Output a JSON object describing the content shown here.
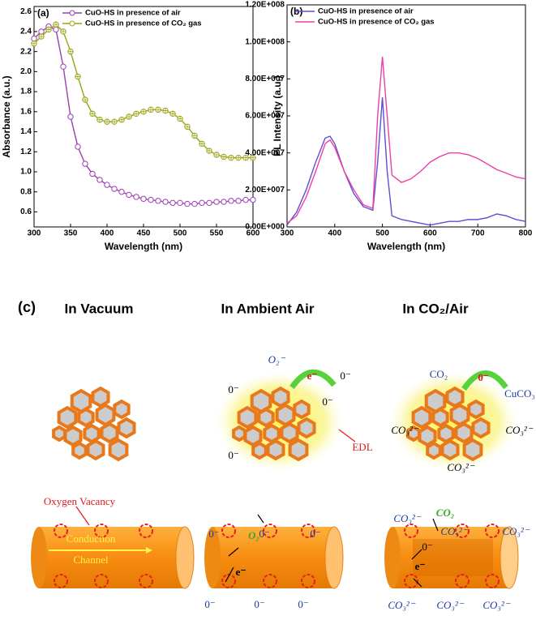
{
  "chart_data": [
    {
      "type": "line",
      "label": "(a)",
      "xlabel": "Wavelength (nm)",
      "ylabel": "Absorbance (a.u.)",
      "x": [
        300,
        310,
        320,
        330,
        340,
        350,
        360,
        370,
        380,
        390,
        400,
        410,
        420,
        430,
        440,
        450,
        460,
        470,
        480,
        490,
        500,
        510,
        520,
        530,
        540,
        550,
        560,
        570,
        580,
        590,
        600
      ],
      "series": [
        {
          "name": "CuO-HS in presence of air",
          "color": "#9b3fb5",
          "marker": "circle",
          "values": [
            2.33,
            2.4,
            2.45,
            2.42,
            2.05,
            1.55,
            1.25,
            1.08,
            0.98,
            0.92,
            0.87,
            0.83,
            0.8,
            0.77,
            0.75,
            0.73,
            0.72,
            0.71,
            0.7,
            0.69,
            0.69,
            0.68,
            0.68,
            0.69,
            0.69,
            0.7,
            0.7,
            0.71,
            0.71,
            0.72,
            0.72
          ]
        },
        {
          "name": "CuO-HS in presence of CO₂ gas",
          "color": "#9aa316",
          "marker": "crossed-circle",
          "values": [
            2.28,
            2.35,
            2.42,
            2.47,
            2.4,
            2.2,
            1.95,
            1.72,
            1.58,
            1.52,
            1.5,
            1.5,
            1.52,
            1.55,
            1.58,
            1.6,
            1.62,
            1.62,
            1.61,
            1.58,
            1.53,
            1.45,
            1.36,
            1.28,
            1.21,
            1.17,
            1.15,
            1.14,
            1.14,
            1.14,
            1.14
          ]
        }
      ],
      "xlim": [
        300,
        600
      ],
      "xticks": [
        300,
        350,
        400,
        450,
        500,
        550,
        600
      ],
      "ylim": [
        0.45,
        2.65
      ],
      "yticks": [
        0.6,
        0.8,
        {
          "value": 1,
          "label": "1.0"
        },
        1.2,
        1.4,
        1.6,
        1.8,
        {
          "value": 2,
          "label": "2.0"
        },
        2.2,
        2.4,
        2.6
      ],
      "legend": "upper-right"
    },
    {
      "type": "line",
      "label": "(b)",
      "xlabel": "Wavelength (nm)",
      "ylabel": "PL Intensity (a.u.)",
      "x": [
        300,
        320,
        340,
        360,
        380,
        390,
        400,
        420,
        440,
        460,
        480,
        490,
        500,
        510,
        520,
        540,
        560,
        580,
        600,
        620,
        640,
        660,
        680,
        700,
        720,
        740,
        760,
        780,
        800
      ],
      "series": [
        {
          "name": "CuO-HS in presence of air",
          "color": "#5b4fd6",
          "values": [
            1000000,
            8000000,
            20000000,
            35000000,
            48000000,
            49000000,
            45000000,
            30000000,
            18000000,
            11000000,
            9000000,
            35000000,
            70000000,
            30000000,
            6000000,
            4000000,
            3000000,
            2000000,
            1000000,
            2000000,
            3000000,
            3000000,
            4000000,
            4000000,
            5000000,
            7000000,
            6000000,
            4000000,
            3000000
          ]
        },
        {
          "name": "CuO-HS in presence of CO₂ gas",
          "color": "#ee3fa8",
          "values": [
            2000000,
            6000000,
            16000000,
            30000000,
            45000000,
            47000000,
            43000000,
            30000000,
            20000000,
            12000000,
            10000000,
            60000000,
            92000000,
            60000000,
            28000000,
            24000000,
            26000000,
            30000000,
            35000000,
            38000000,
            40000000,
            40000000,
            39000000,
            37000000,
            34000000,
            31000000,
            29000000,
            27000000,
            26000000
          ]
        }
      ],
      "xlim": [
        300,
        800
      ],
      "xticks": [
        300,
        400,
        500,
        600,
        700,
        800
      ],
      "ylim": [
        0,
        120000000
      ],
      "yticks": [
        {
          "value": 0,
          "label": "0.00E+000"
        },
        {
          "value": 20000000,
          "label": "2.00E+007"
        },
        {
          "value": 40000000,
          "label": "4.00E+007"
        },
        {
          "value": 60000000,
          "label": "6.00E+007"
        },
        {
          "value": 80000000,
          "label": "8.00E+007"
        },
        {
          "value": 100000000,
          "label": "1.00E+008"
        },
        {
          "value": 120000000,
          "label": "1.20E+008"
        }
      ],
      "legend": "upper-right"
    }
  ],
  "diagram": {
    "label": "(c)",
    "titles": [
      "In Vacuum",
      "In Ambient Air",
      "In CO₂/Air"
    ],
    "labels": [
      "O₂⁻",
      "e⁻",
      "0⁻",
      "0⁻",
      "0⁻",
      "0⁻",
      "EDL",
      "CO₂",
      "0⁻",
      "CuCO₃",
      "CO₃²⁻",
      "CO₃²⁻",
      "CO₃²⁻",
      "Oxygen Vacancy",
      "Conduction",
      "Channel",
      "O₂",
      "0⁻",
      "0⁻",
      "0⁻",
      "e⁻",
      "0⁻",
      "0⁻",
      "0⁻",
      "CO₂",
      "CO₃²⁻",
      "CO₃²⁻",
      "CO₃²⁻",
      "0⁻",
      "e⁻",
      "CO₃²⁻",
      "CO₃²⁻",
      "CO₃²⁻"
    ]
  }
}
